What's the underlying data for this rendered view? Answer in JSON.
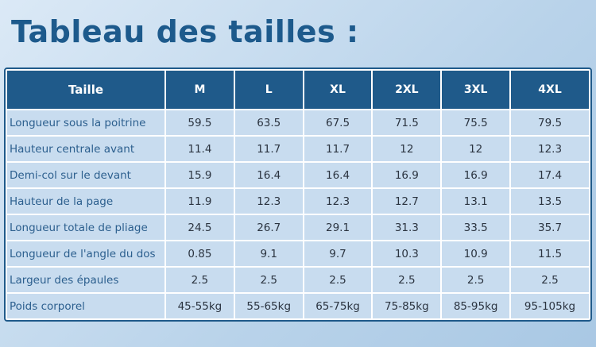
{
  "title": "Tableau des tailles :",
  "table": {
    "header": [
      "Taille",
      "M",
      "L",
      "XL",
      "2XL",
      "3XL",
      "4XL"
    ],
    "rows": [
      [
        "Longueur sous la poitrine",
        "59.5",
        "63.5",
        "67.5",
        "71.5",
        "75.5",
        "79.5"
      ],
      [
        "Hauteur centrale avant",
        "11.4",
        "11.7",
        "11.7",
        "12",
        "12",
        "12.3"
      ],
      [
        "Demi-col sur le devant",
        "15.9",
        "16.4",
        "16.4",
        "16.9",
        "16.9",
        "17.4"
      ],
      [
        "Hauteur de la page",
        "11.9",
        "12.3",
        "12.3",
        "12.7",
        "13.1",
        "13.5"
      ],
      [
        "Longueur totale de pliage",
        "24.5",
        "26.7",
        "29.1",
        "31.3",
        "33.5",
        "35.7"
      ],
      [
        "Longueur de l'angle du dos",
        "0.85",
        "9.1",
        "9.7",
        "10.3",
        "10.9",
        "11.5"
      ],
      [
        "Largeur des épaules",
        "2.5",
        "2.5",
        "2.5",
        "2.5",
        "2.5",
        "2.5"
      ],
      [
        "Poids corporel",
        "45-55kg",
        "55-65kg",
        "65-75kg",
        "75-85kg",
        "85-95kg",
        "95-105kg"
      ]
    ]
  }
}
